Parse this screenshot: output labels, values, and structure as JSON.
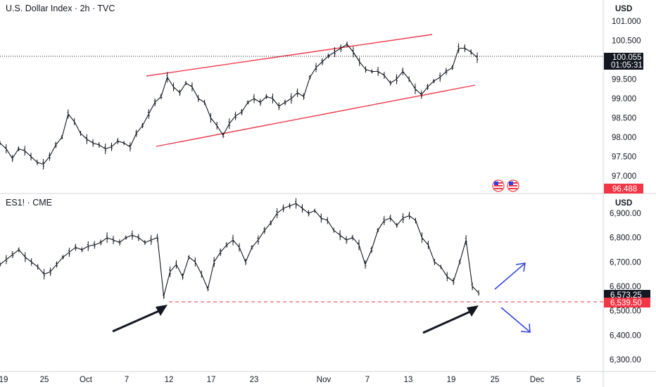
{
  "colors": {
    "bar": "#131722",
    "channel": "#f0394a",
    "support": "#e8323f",
    "arrow_black": "#131722",
    "arrow_blue": "#2f3fe6",
    "tag_black": "#131722",
    "tag_red": "#f23645",
    "grid_sep": "#d1d4dc"
  },
  "chart_data": [
    {
      "type": "line",
      "title": "U.S. Dollar Index · 2h · TVC",
      "currency": "USD",
      "y_ticks": [
        "101.000",
        "100.500",
        "99.500",
        "99.000",
        "98.500",
        "98.000",
        "97.500",
        "97.000"
      ],
      "ylim": [
        96.4,
        101.3
      ],
      "last_price": "100.055",
      "countdown": "01:05:31",
      "marker_price": "96.488",
      "channel_upper": [
        [
          0.0,
          99.55
        ],
        [
          1.0,
          100.6
        ]
      ],
      "channel_lower": [
        [
          0.0,
          97.8
        ],
        [
          1.0,
          99.35
        ]
      ],
      "points": [
        [
          0,
          97.85
        ],
        [
          2,
          97.7
        ],
        [
          4,
          97.45
        ],
        [
          6,
          97.7
        ],
        [
          8,
          97.65
        ],
        [
          10,
          97.5
        ],
        [
          12,
          97.35
        ],
        [
          14,
          97.3
        ],
        [
          16,
          97.5
        ],
        [
          18,
          97.8
        ],
        [
          20,
          98.0
        ],
        [
          22,
          98.6
        ],
        [
          24,
          98.4
        ],
        [
          26,
          98.1
        ],
        [
          28,
          97.95
        ],
        [
          30,
          97.85
        ],
        [
          32,
          97.8
        ],
        [
          34,
          97.7
        ],
        [
          36,
          97.75
        ],
        [
          38,
          97.9
        ],
        [
          40,
          97.85
        ],
        [
          42,
          97.75
        ],
        [
          44,
          98.1
        ],
        [
          46,
          98.3
        ],
        [
          48,
          98.6
        ],
        [
          50,
          98.9
        ],
        [
          52,
          99.05
        ],
        [
          54,
          99.55
        ],
        [
          56,
          99.3
        ],
        [
          58,
          99.15
        ],
        [
          60,
          99.4
        ],
        [
          62,
          99.3
        ],
        [
          64,
          99.0
        ],
        [
          66,
          98.9
        ],
        [
          68,
          98.5
        ],
        [
          70,
          98.3
        ],
        [
          72,
          98.05
        ],
        [
          74,
          98.35
        ],
        [
          76,
          98.55
        ],
        [
          78,
          98.65
        ],
        [
          80,
          98.9
        ],
        [
          82,
          99.0
        ],
        [
          84,
          98.9
        ],
        [
          86,
          99.05
        ],
        [
          88,
          99.0
        ],
        [
          90,
          98.8
        ],
        [
          92,
          98.9
        ],
        [
          94,
          99.0
        ],
        [
          96,
          99.15
        ],
        [
          98,
          99.05
        ],
        [
          100,
          99.55
        ],
        [
          102,
          99.8
        ],
        [
          104,
          99.95
        ],
        [
          106,
          100.1
        ],
        [
          108,
          100.2
        ],
        [
          110,
          100.3
        ],
        [
          112,
          100.4
        ],
        [
          114,
          100.2
        ],
        [
          116,
          99.95
        ],
        [
          118,
          99.75
        ],
        [
          120,
          99.7
        ],
        [
          122,
          99.7
        ],
        [
          124,
          99.6
        ],
        [
          126,
          99.4
        ],
        [
          128,
          99.5
        ],
        [
          130,
          99.7
        ],
        [
          132,
          99.5
        ],
        [
          134,
          99.25
        ],
        [
          136,
          99.1
        ],
        [
          138,
          99.3
        ],
        [
          140,
          99.45
        ],
        [
          142,
          99.55
        ],
        [
          144,
          99.7
        ],
        [
          146,
          99.8
        ],
        [
          148,
          100.3
        ],
        [
          150,
          100.3
        ],
        [
          152,
          100.2
        ],
        [
          154,
          100.055
        ]
      ]
    },
    {
      "type": "line",
      "title": "ES1! · CME",
      "currency": "USD",
      "y_ticks": [
        "6,900.00",
        "6,800.00",
        "6,700.00",
        "6,600.00",
        "6,500.00",
        "6,400.00",
        "6,300.00"
      ],
      "ylim": [
        6270,
        6960
      ],
      "last_price": "6,573.25",
      "marker_price": "6,539.50",
      "x_ticks": [
        "19",
        "25",
        "Oct",
        "7",
        "12",
        "17",
        "23",
        "Nov",
        "7",
        "13",
        "19",
        "25",
        "Dec",
        "5"
      ],
      "support_level": 6539.5,
      "points": [
        [
          0,
          6690
        ],
        [
          2,
          6710
        ],
        [
          4,
          6730
        ],
        [
          6,
          6750
        ],
        [
          8,
          6720
        ],
        [
          10,
          6700
        ],
        [
          12,
          6680
        ],
        [
          14,
          6650
        ],
        [
          16,
          6660
        ],
        [
          18,
          6690
        ],
        [
          20,
          6720
        ],
        [
          22,
          6740
        ],
        [
          24,
          6760
        ],
        [
          26,
          6750
        ],
        [
          28,
          6765
        ],
        [
          30,
          6770
        ],
        [
          32,
          6780
        ],
        [
          34,
          6800
        ],
        [
          36,
          6790
        ],
        [
          38,
          6780
        ],
        [
          40,
          6800
        ],
        [
          42,
          6810
        ],
        [
          44,
          6800
        ],
        [
          46,
          6780
        ],
        [
          48,
          6790
        ],
        [
          50,
          6800
        ],
        [
          52,
          6560
        ],
        [
          54,
          6660
        ],
        [
          56,
          6690
        ],
        [
          58,
          6640
        ],
        [
          60,
          6720
        ],
        [
          62,
          6700
        ],
        [
          64,
          6650
        ],
        [
          66,
          6590
        ],
        [
          68,
          6700
        ],
        [
          70,
          6740
        ],
        [
          72,
          6770
        ],
        [
          74,
          6790
        ],
        [
          76,
          6760
        ],
        [
          78,
          6700
        ],
        [
          80,
          6760
        ],
        [
          82,
          6790
        ],
        [
          84,
          6830
        ],
        [
          86,
          6860
        ],
        [
          88,
          6900
        ],
        [
          90,
          6920
        ],
        [
          92,
          6930
        ],
        [
          94,
          6940
        ],
        [
          96,
          6920
        ],
        [
          98,
          6900
        ],
        [
          100,
          6910
        ],
        [
          102,
          6880
        ],
        [
          104,
          6870
        ],
        [
          106,
          6830
        ],
        [
          108,
          6810
        ],
        [
          110,
          6790
        ],
        [
          112,
          6800
        ],
        [
          114,
          6770
        ],
        [
          116,
          6690
        ],
        [
          118,
          6750
        ],
        [
          120,
          6830
        ],
        [
          122,
          6870
        ],
        [
          124,
          6880
        ],
        [
          126,
          6850
        ],
        [
          128,
          6880
        ],
        [
          130,
          6890
        ],
        [
          132,
          6870
        ],
        [
          134,
          6800
        ],
        [
          136,
          6770
        ],
        [
          138,
          6700
        ],
        [
          140,
          6680
        ],
        [
          142,
          6640
        ],
        [
          144,
          6620
        ],
        [
          146,
          6700
        ],
        [
          148,
          6790
        ],
        [
          150,
          6600
        ],
        [
          152,
          6573.25
        ]
      ]
    }
  ],
  "x_tick_positions_labels": [
    "19",
    "25",
    "Oct",
    "7",
    "12",
    "17",
    "23",
    "Nov",
    "7",
    "13",
    "19",
    "25",
    "Dec",
    "5"
  ]
}
